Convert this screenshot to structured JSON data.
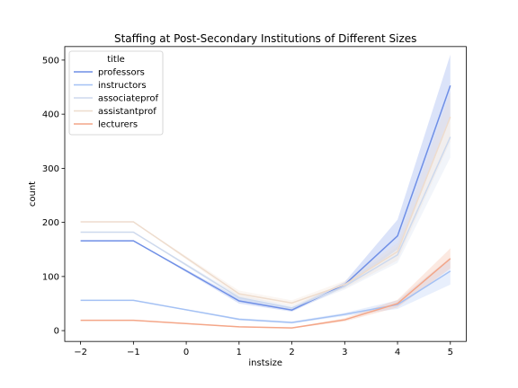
{
  "chart_data": {
    "type": "line",
    "title": "Staffing at Post-Secondary Institutions of Different Sizes",
    "xlabel": "instsize",
    "ylabel": "count",
    "x": [
      -2,
      -1,
      1,
      2,
      3,
      4,
      5
    ],
    "xticks": [
      -2,
      -1,
      0,
      1,
      2,
      3,
      4,
      5
    ],
    "xtick_labels": [
      "−2",
      "−1",
      "0",
      "1",
      "2",
      "3",
      "4",
      "5"
    ],
    "xlim": [
      -2.3,
      5.3
    ],
    "yticks": [
      0,
      100,
      200,
      300,
      400,
      500
    ],
    "ylim": [
      -20,
      525
    ],
    "grid": false,
    "legend": {
      "title": "title",
      "placement": "upper-left"
    },
    "series": [
      {
        "name": "professors",
        "color": "#6f8fe6",
        "values": [
          166,
          166,
          55,
          38,
          85,
          175,
          453
        ],
        "ci_low": [
          166,
          166,
          50,
          35,
          80,
          150,
          395
        ],
        "ci_high": [
          166,
          166,
          60,
          42,
          90,
          205,
          510
        ]
      },
      {
        "name": "instructors",
        "color": "#a4c1f4",
        "values": [
          56,
          56,
          21,
          15,
          30,
          48,
          110
        ],
        "ci_low": [
          56,
          56,
          19,
          13,
          27,
          40,
          85
        ],
        "ci_high": [
          56,
          56,
          23,
          17,
          33,
          56,
          135
        ]
      },
      {
        "name": "associateprof",
        "color": "#cdd9ed",
        "values": [
          182,
          182,
          61,
          42,
          82,
          140,
          358
        ],
        "ci_low": [
          182,
          182,
          56,
          38,
          76,
          125,
          320
        ],
        "ci_high": [
          182,
          182,
          66,
          46,
          88,
          155,
          395
        ]
      },
      {
        "name": "assistantprof",
        "color": "#eedccd",
        "values": [
          201,
          201,
          68,
          51,
          85,
          146,
          395
        ],
        "ci_low": [
          201,
          201,
          62,
          46,
          78,
          130,
          350
        ],
        "ci_high": [
          201,
          201,
          74,
          56,
          92,
          162,
          440
        ]
      },
      {
        "name": "lecturers",
        "color": "#f4a688",
        "values": [
          19,
          19,
          7,
          5,
          20,
          50,
          133
        ],
        "ci_low": [
          19,
          19,
          6,
          4,
          17,
          43,
          115
        ],
        "ci_high": [
          19,
          19,
          8,
          6,
          23,
          57,
          152
        ]
      }
    ]
  }
}
